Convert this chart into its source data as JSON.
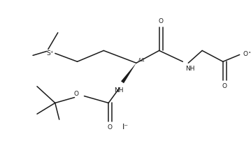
{
  "bg_color": "#ffffff",
  "line_color": "#1a1a1a",
  "line_width": 1.1,
  "font_size": 6.5,
  "figsize": [
    3.59,
    2.12
  ],
  "dpi": 100,
  "iodide_label": "I⁻",
  "stereo_label": "&1",
  "sp_label": "S⁺"
}
